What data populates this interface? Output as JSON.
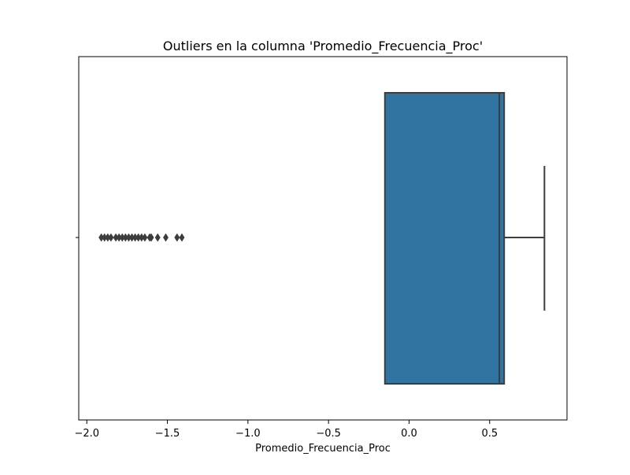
{
  "chart_data": {
    "type": "box",
    "title": "Outliers en la columna 'Promedio_Frecuencia_Proc'",
    "xlabel": "Promedio_Frecuencia_Proc",
    "ylabel": "",
    "xlim": [
      -2.05,
      0.98
    ],
    "xticks": [
      -2.0,
      -1.5,
      -1.0,
      -0.5,
      0.0,
      0.5
    ],
    "xtick_labels": [
      "−2.0",
      "−1.5",
      "−1.0",
      "−0.5",
      "0.0",
      "0.5"
    ],
    "orientation": "horizontal",
    "box": {
      "whisker_low": -0.15,
      "q1": -0.15,
      "median": 0.56,
      "q3": 0.59,
      "whisker_high": 0.84,
      "color": "#3274a1",
      "line_color": "#3d3d3d"
    },
    "outliers": [
      -1.91,
      -1.89,
      -1.87,
      -1.85,
      -1.82,
      -1.8,
      -1.78,
      -1.76,
      -1.74,
      -1.72,
      -1.7,
      -1.68,
      -1.66,
      -1.64,
      -1.61,
      -1.6,
      -1.56,
      -1.51,
      -1.44,
      -1.41
    ],
    "grid": false
  }
}
